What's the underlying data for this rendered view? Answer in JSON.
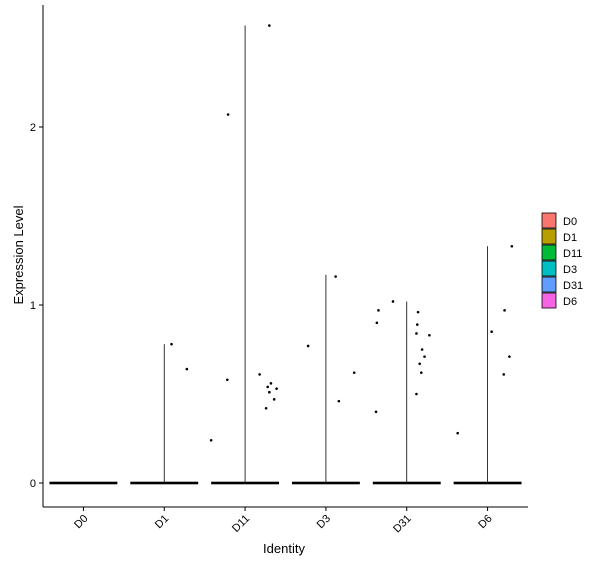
{
  "chart_data": {
    "type": "violin",
    "title": "",
    "xlabel": "Identity",
    "ylabel": "Expression Level",
    "categories": [
      "D0",
      "D1",
      "D11",
      "D3",
      "D31",
      "D6"
    ],
    "ylim": [
      -0.13,
      2.7
    ],
    "yticks": [
      0,
      1,
      2
    ],
    "grid": false,
    "legend": {
      "position": "right",
      "entries": [
        {
          "label": "D0",
          "color": "#F8766D"
        },
        {
          "label": "D1",
          "color": "#B79F00"
        },
        {
          "label": "D11",
          "color": "#00BA38"
        },
        {
          "label": "D3",
          "color": "#00BFC4"
        },
        {
          "label": "D31",
          "color": "#619CFF"
        },
        {
          "label": "D6",
          "color": "#F564E3"
        }
      ]
    },
    "groups": [
      {
        "name": "D0",
        "max": 0.0,
        "points": []
      },
      {
        "name": "D1",
        "max": 0.78,
        "points": [
          [
            0.09,
            0.78
          ],
          [
            0.28,
            0.64
          ]
        ]
      },
      {
        "name": "D11",
        "max": 2.57,
        "points": [
          [
            -0.42,
            0.24
          ],
          [
            -0.22,
            0.58
          ],
          [
            -0.21,
            2.07
          ],
          [
            0.18,
            0.61
          ],
          [
            0.26,
            0.42
          ],
          [
            0.28,
            0.54
          ],
          [
            0.3,
            0.51
          ],
          [
            0.32,
            0.56
          ],
          [
            0.36,
            0.47
          ],
          [
            0.39,
            0.53
          ],
          [
            0.3,
            2.57
          ]
        ]
      },
      {
        "name": "D3",
        "max": 1.17,
        "points": [
          [
            -0.22,
            0.77
          ],
          [
            0.12,
            1.16
          ],
          [
            0.16,
            0.46
          ],
          [
            0.35,
            0.62
          ]
        ]
      },
      {
        "name": "D31",
        "max": 1.02,
        "points": [
          [
            -0.38,
            0.4
          ],
          [
            -0.37,
            0.9
          ],
          [
            -0.35,
            0.97
          ],
          [
            -0.17,
            1.02
          ],
          [
            0.12,
            0.5
          ],
          [
            0.12,
            0.84
          ],
          [
            0.13,
            0.89
          ],
          [
            0.14,
            0.96
          ],
          [
            0.16,
            0.67
          ],
          [
            0.18,
            0.62
          ],
          [
            0.19,
            0.75
          ],
          [
            0.22,
            0.71
          ],
          [
            0.28,
            0.83
          ]
        ]
      },
      {
        "name": "D6",
        "max": 1.33,
        "points": [
          [
            -0.37,
            0.28
          ],
          [
            0.05,
            0.85
          ],
          [
            0.2,
            0.61
          ],
          [
            0.21,
            0.97
          ],
          [
            0.27,
            0.71
          ],
          [
            0.3,
            1.33
          ]
        ]
      }
    ]
  }
}
